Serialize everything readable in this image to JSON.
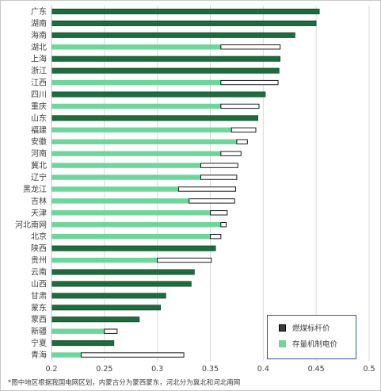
{
  "chart_data": {
    "type": "bar",
    "orientation": "horizontal",
    "categories": [
      "广东",
      "湖南",
      "海南",
      "湖北",
      "上海",
      "浙江",
      "江西",
      "四川",
      "重庆",
      "山东",
      "福建",
      "安徽",
      "河南",
      "冀北",
      "辽宁",
      "黑龙江",
      "吉林",
      "天津",
      "河北南网",
      "北京",
      "陕西",
      "贵州",
      "云南",
      "山西",
      "甘肃",
      "蒙东",
      "蒙西",
      "新疆",
      "宁夏",
      "青海"
    ],
    "series": [
      {
        "name": "燃煤标杆价",
        "color": "#1e6b3e",
        "values": [
          0.453,
          0.45,
          0.43,
          0.416,
          0.416,
          0.415,
          0.414,
          0.402,
          0.396,
          0.395,
          0.393,
          0.385,
          0.379,
          0.376,
          0.375,
          0.374,
          0.373,
          0.366,
          0.365,
          0.36,
          0.355,
          0.351,
          0.335,
          0.332,
          0.308,
          0.303,
          0.283,
          0.262,
          0.259,
          0.325
        ]
      },
      {
        "name": "存量机制电价",
        "color": "#6ed69a",
        "values": [
          0.453,
          0.45,
          0.43,
          0.36,
          0.416,
          0.415,
          0.36,
          0.402,
          0.36,
          0.395,
          0.37,
          0.375,
          0.36,
          0.341,
          0.341,
          0.32,
          0.33,
          0.35,
          0.36,
          0.35,
          0.355,
          0.3,
          0.335,
          0.332,
          0.308,
          0.303,
          0.283,
          0.25,
          0.259,
          0.228
        ]
      }
    ],
    "xlim": [
      0.2,
      0.5
    ],
    "xticks": [
      "0.2",
      "0.25",
      "0.3",
      "0.35",
      "0.4",
      "0.45",
      "0.5"
    ],
    "title": "",
    "xlabel": "",
    "ylabel": "",
    "grid": "vertical",
    "legend_position": "bottom-right"
  },
  "legend": {
    "items": [
      {
        "label": "燃煤标杆价",
        "swatch_fill": "#3a3a3a",
        "swatch_border": "#000000"
      },
      {
        "label": "存量机制电价",
        "swatch_fill": "#6ed69a",
        "swatch_border": "#6ed69a"
      }
    ]
  },
  "footnote": "*图中地区根据我国电网区划，内蒙古分为蒙西蒙东，河北分为冀北和河北南网"
}
